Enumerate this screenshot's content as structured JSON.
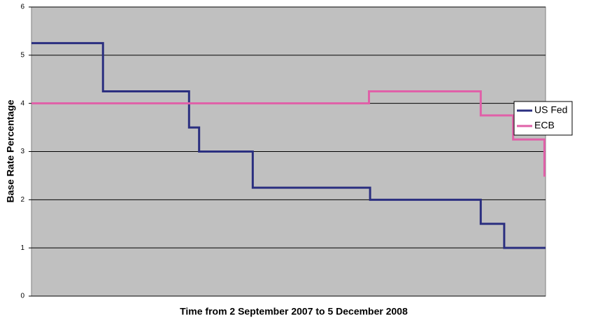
{
  "chart_data": {
    "type": "line",
    "step_drawn_as_vertices": true,
    "xlabel": "Time from 2 September 2007 to 5 December 2008",
    "ylabel": "Base Rate Percentage",
    "xlim": [
      0,
      460
    ],
    "ylim": [
      0,
      6
    ],
    "yticks": [
      0,
      1,
      2,
      3,
      4,
      5,
      6
    ],
    "grid": true,
    "legend": "right",
    "series": [
      {
        "name": "US Fed",
        "color": "#2b2f80",
        "x": [
          0,
          64,
          64,
          141,
          141,
          150,
          150,
          198,
          198,
          303,
          303,
          402,
          402,
          423,
          423,
          460
        ],
        "values": [
          5.25,
          5.25,
          4.25,
          4.25,
          3.5,
          3.5,
          3,
          3,
          2.25,
          2.25,
          2,
          2,
          1.5,
          1.5,
          1,
          1
        ]
      },
      {
        "name": "ECB",
        "color": "#e060a8",
        "x": [
          0,
          302,
          302,
          402,
          402,
          431,
          431,
          459,
          459,
          460
        ],
        "values": [
          4,
          4,
          4.25,
          4.25,
          3.75,
          3.75,
          3.25,
          3.25,
          2.5,
          2.5
        ]
      }
    ]
  }
}
